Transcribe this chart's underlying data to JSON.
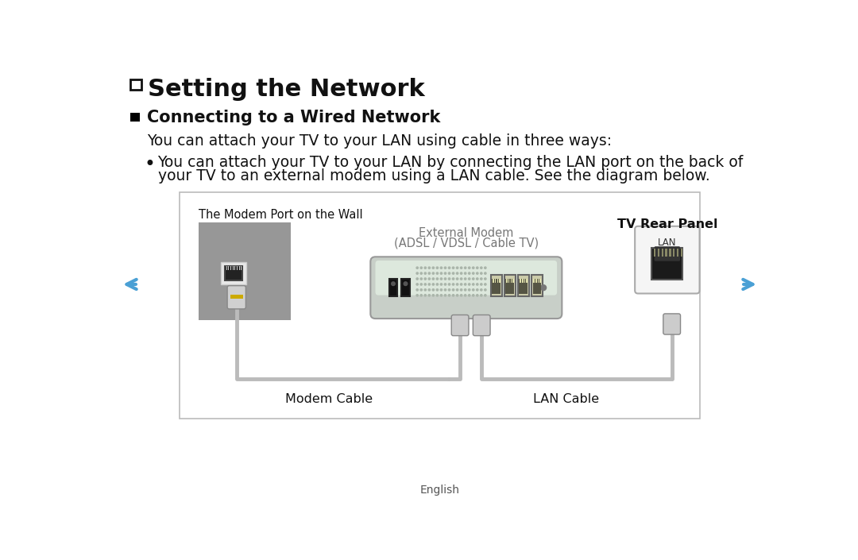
{
  "title": "Setting the Network",
  "section_title": "Connecting to a Wired Network",
  "body_text": "You can attach your TV to your LAN using cable in three ways:",
  "bullet_text_line1": "You can attach your TV to your LAN by connecting the LAN port on the back of",
  "bullet_text_line2": "your TV to an external modem using a LAN cable. See the diagram below.",
  "diagram_label_wall": "The Modem Port on the Wall",
  "diagram_label_modem_line1": "External Modem",
  "diagram_label_modem_line2": "(ADSL / VDSL / Cable TV)",
  "diagram_label_tv": "TV Rear Panel",
  "diagram_label_modem_cable": "Modem Cable",
  "diagram_label_lan_cable": "LAN Cable",
  "lan_label": "LAN",
  "footer_text": "English",
  "bg_color": "#ffffff",
  "box_border_color": "#bbbbbb",
  "text_color": "#111111",
  "gray_diagram_label": "#777777",
  "arrow_color": "#4aa0d5",
  "title_fontsize": 22,
  "section_fontsize": 15,
  "body_fontsize": 13.5,
  "bullet_fontsize": 13.5,
  "diag_label_fontsize": 10.5,
  "diag_small_fontsize": 9,
  "footer_fontsize": 10
}
